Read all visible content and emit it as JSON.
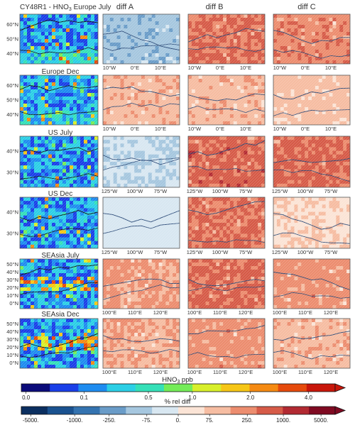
{
  "title": "CY48R1 - HNO3 Europe July",
  "chart_data": {
    "type": "heatmap",
    "title": "CY48R1 - HNO3 Europe July",
    "columns": [
      "",
      "diff A",
      "diff B",
      "diff C"
    ],
    "rows": [
      {
        "label": "Europe July",
        "show_label": false,
        "lat_ticks": [
          "60°N",
          "50°N",
          "40°N"
        ],
        "lon_ticks": [
          "10°W",
          "0°E",
          "10°E"
        ],
        "diff_level_pct": [
          -60,
          300,
          200
        ]
      },
      {
        "label": "Europe Dec",
        "show_label": true,
        "lat_ticks": [
          "60°N",
          "50°N",
          "40°N"
        ],
        "lon_ticks": [
          "10°W",
          "0°E",
          "10°E"
        ],
        "diff_level_pct": [
          60,
          60,
          40
        ]
      },
      {
        "label": "US July",
        "show_label": true,
        "lat_ticks": [
          "40°N",
          "30°N"
        ],
        "lon_ticks": [
          "125°W",
          "100°W",
          "75°W"
        ],
        "diff_level_pct": [
          -20,
          400,
          350
        ]
      },
      {
        "label": "US Dec",
        "show_label": true,
        "lat_ticks": [
          "40°N",
          "30°N"
        ],
        "lon_ticks": [
          "125°W",
          "100°W",
          "75°W"
        ],
        "diff_level_pct": [
          -10,
          300,
          20
        ]
      },
      {
        "label": "SEAsia July",
        "show_label": true,
        "lat_ticks": [
          "50°N",
          "40°N",
          "30°N",
          "20°N",
          "10°N",
          "0°N"
        ],
        "lon_ticks": [
          "100°E",
          "110°E",
          "120°E"
        ],
        "diff_level_pct": [
          100,
          350,
          150
        ]
      },
      {
        "label": "SEAsia Dec",
        "show_label": true,
        "lat_ticks": [
          "50°N",
          "40°N",
          "30°N",
          "20°N",
          "10°N",
          "0°N"
        ],
        "lon_ticks": [
          "100°E",
          "110°E",
          "120°E"
        ],
        "diff_level_pct": [
          80,
          150,
          60
        ]
      }
    ],
    "colorbars": [
      {
        "label": "HNO3 ppb",
        "ticks": [
          "0.0",
          "0.1",
          "0.5",
          "1.0",
          "2.0",
          "4.0"
        ],
        "colors": [
          "#0b0b7a",
          "#1a3fe8",
          "#1e8cf0",
          "#2ccfe6",
          "#35e0b8",
          "#74ec58",
          "#d8ef2a",
          "#f6c616",
          "#f58a12",
          "#e64a0c",
          "#c8160a"
        ]
      },
      {
        "label": "% rel diff",
        "ticks": [
          "-5000.",
          "-1000.",
          "-250.",
          "-75.",
          "0.",
          "75.",
          "250.",
          "1000.",
          "5000."
        ],
        "colors": [
          "#0b2f60",
          "#1a5290",
          "#3473b0",
          "#6a9cc8",
          "#a6c7df",
          "#d8e7f1",
          "#fbe4d6",
          "#f6bda2",
          "#ec8d6f",
          "#d65b48",
          "#b22a32",
          "#7f0a22"
        ]
      }
    ],
    "grid": true
  }
}
